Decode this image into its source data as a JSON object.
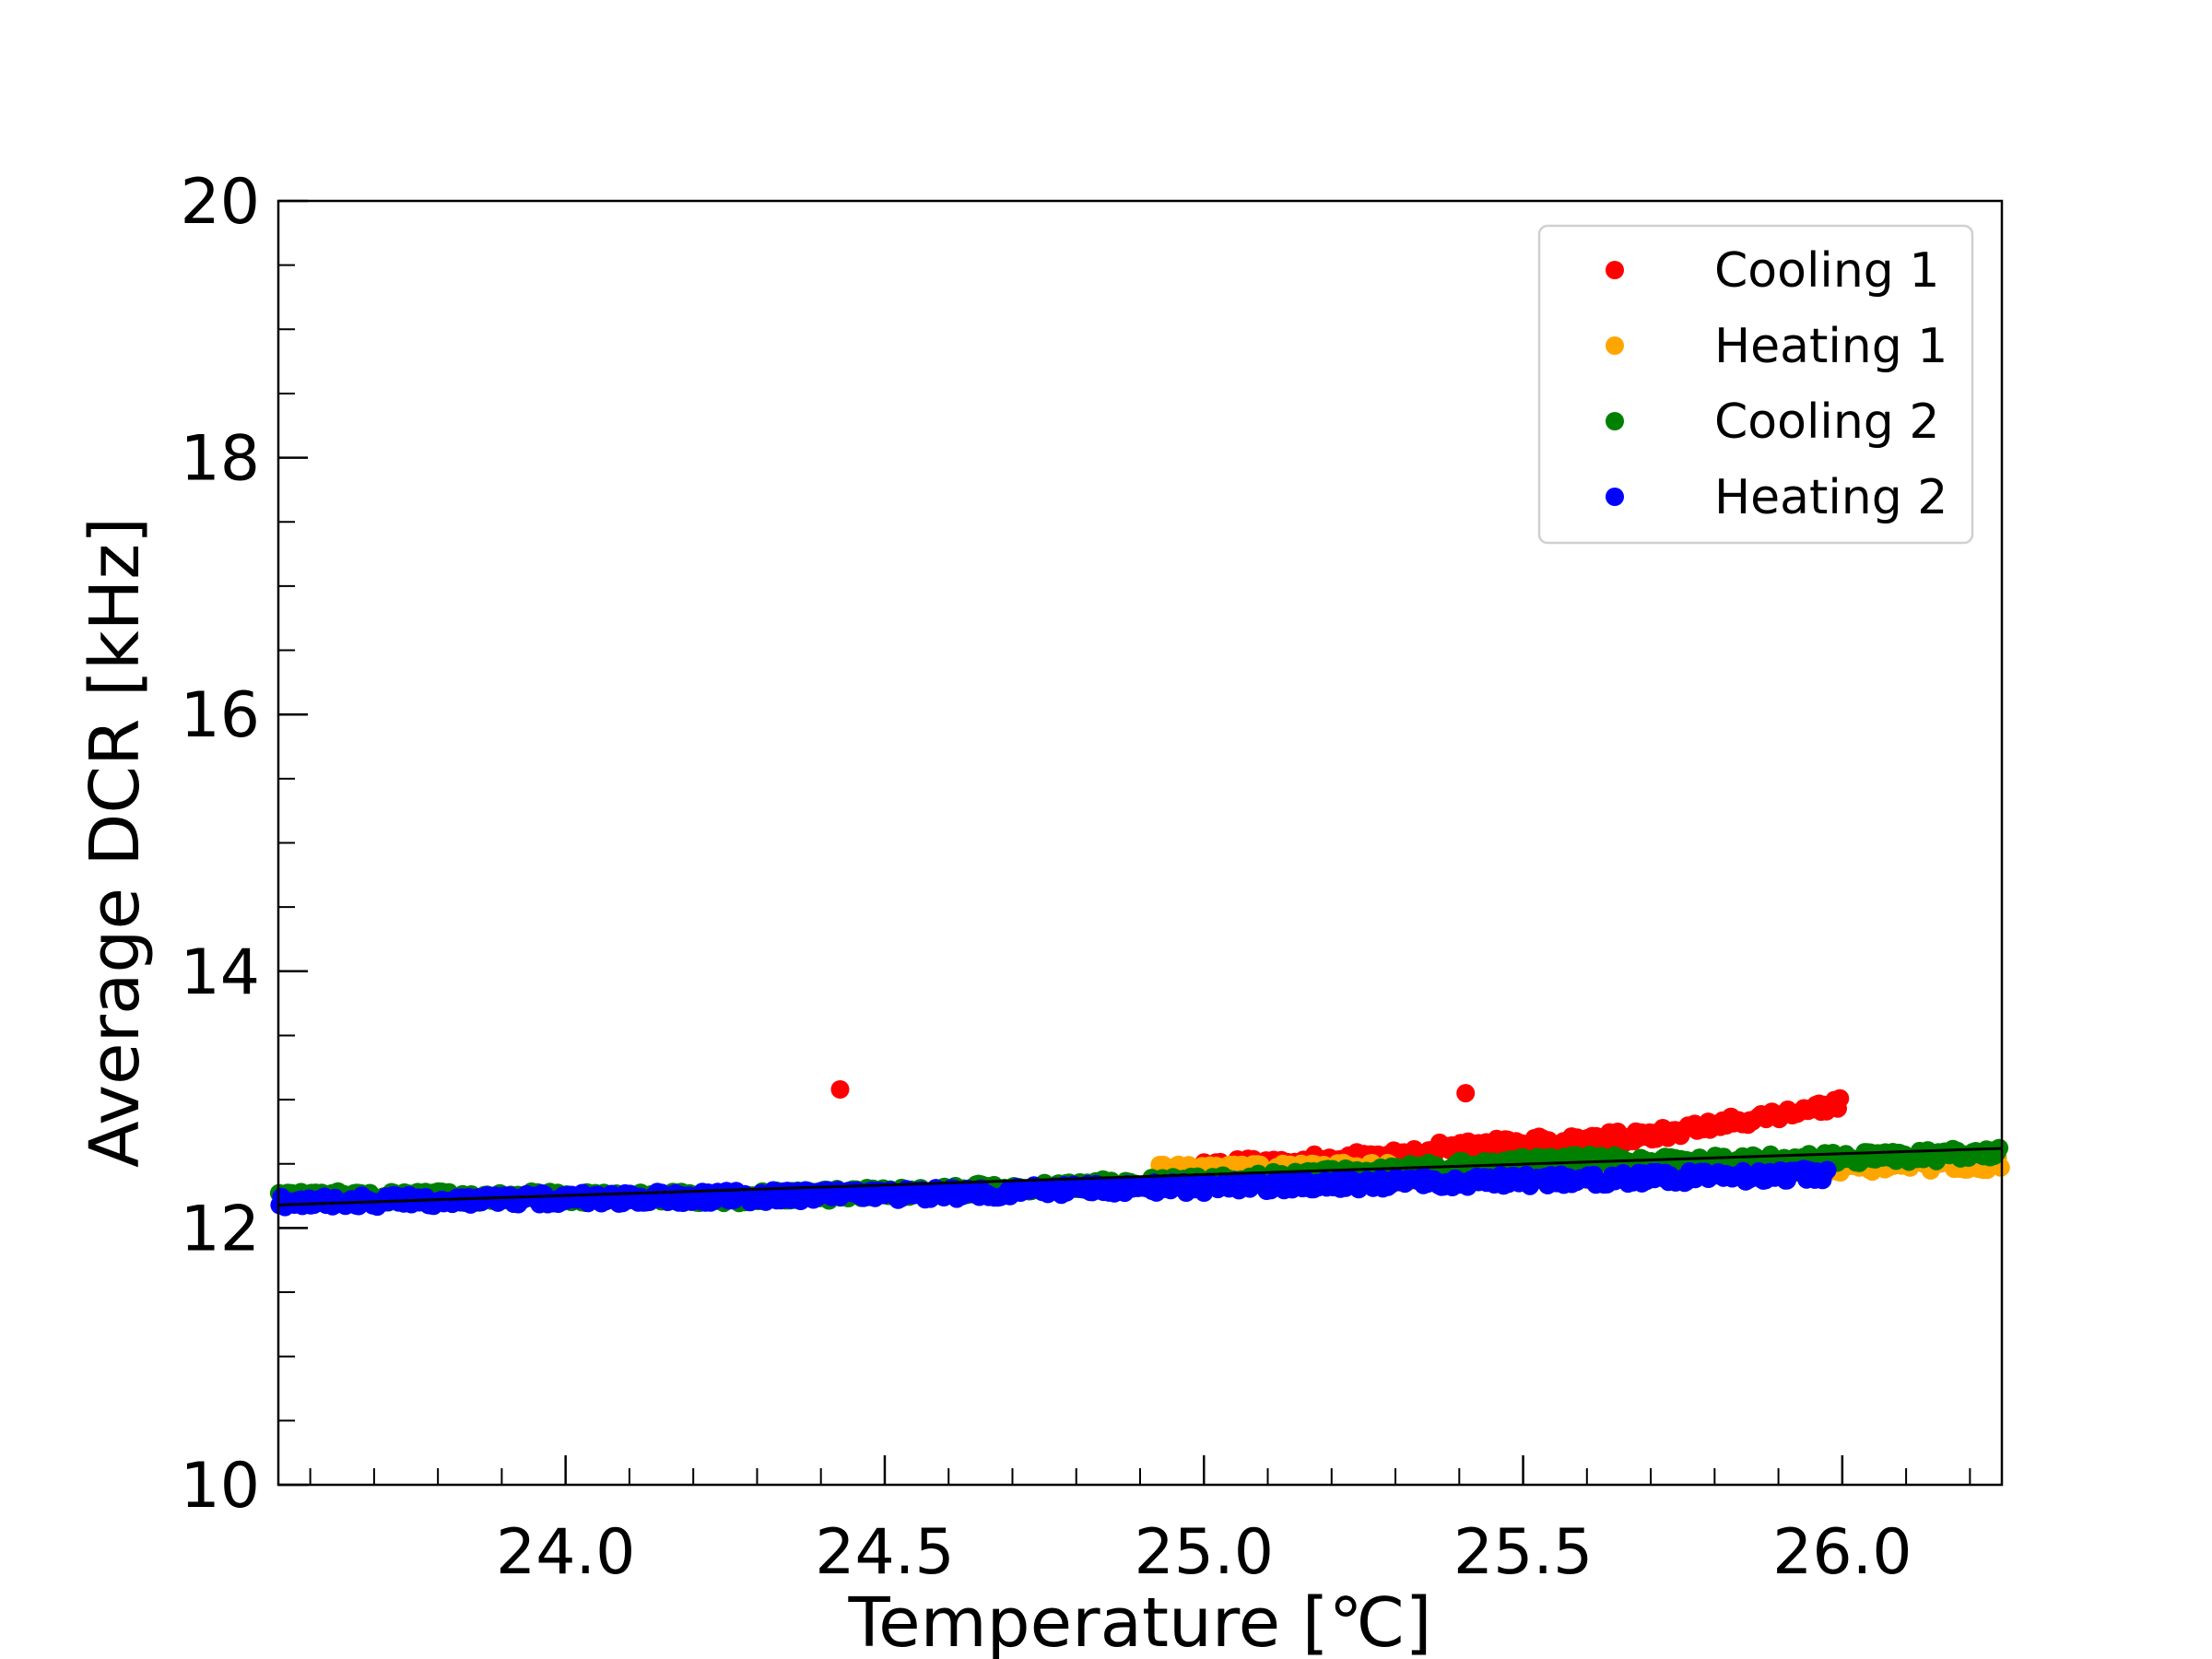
{
  "chart_data": {
    "type": "scatter",
    "title": "",
    "xlabel": "Temperature [℃]",
    "ylabel": "Average DCR [kHz]",
    "xlim": [
      23.55,
      26.25
    ],
    "ylim": [
      10,
      20
    ],
    "x_ticks": [
      24.0,
      24.5,
      25.0,
      25.5,
      26.0
    ],
    "x_tick_labels": [
      "24.0",
      "24.5",
      "25.0",
      "25.5",
      "26.0"
    ],
    "y_ticks": [
      10,
      12,
      14,
      16,
      18,
      20
    ],
    "y_tick_labels": [
      "10",
      "12",
      "14",
      "16",
      "18",
      "20"
    ],
    "grid": false,
    "legend_position": "top-right",
    "series": [
      {
        "name": "Cooling 1",
        "color": "#ff0000",
        "segments": [
          {
            "x": [
              25.0,
              25.25
            ],
            "y": [
              12.48,
              12.55
            ]
          },
          {
            "x": [
              25.25,
              25.35
            ],
            "y": [
              12.55,
              12.58
            ]
          },
          {
            "x": [
              25.35,
              25.7
            ],
            "y": [
              12.62,
              12.72
            ]
          },
          {
            "x": [
              25.7,
              26.0
            ],
            "y": [
              12.72,
              12.97
            ]
          }
        ],
        "outliers": [
          {
            "x": 24.43,
            "y": 13.08
          },
          {
            "x": 25.41,
            "y": 13.05
          }
        ]
      },
      {
        "name": "Heating 1",
        "color": "#ffa500",
        "segments": [
          {
            "x": [
              24.93,
              25.3
            ],
            "y": [
              12.45,
              12.47
            ]
          },
          {
            "x": [
              25.3,
              25.65
            ],
            "y": [
              12.4,
              12.42
            ]
          },
          {
            "x": [
              25.65,
              26.25
            ],
            "y": [
              12.45,
              12.5
            ]
          }
        ],
        "outliers": []
      },
      {
        "name": "Cooling 2",
        "color": "#008000",
        "segments": [
          {
            "x": [
              23.55,
              24.3
            ],
            "y": [
              12.24,
              12.24
            ]
          },
          {
            "x": [
              24.3,
              25.0
            ],
            "y": [
              12.24,
              12.36
            ]
          },
          {
            "x": [
              25.0,
              25.65
            ],
            "y": [
              12.36,
              12.55
            ]
          },
          {
            "x": [
              25.65,
              26.25
            ],
            "y": [
              12.5,
              12.58
            ]
          }
        ],
        "outliers": []
      },
      {
        "name": "Heating 2",
        "color": "#0000ff",
        "segments": [
          {
            "x": [
              23.55,
              24.5
            ],
            "y": [
              12.2,
              12.26
            ]
          },
          {
            "x": [
              24.5,
              25.0
            ],
            "y": [
              12.26,
              12.32
            ]
          },
          {
            "x": [
              25.0,
              25.98
            ],
            "y": [
              12.32,
              12.42
            ]
          }
        ],
        "outliers": []
      }
    ],
    "fit_line": {
      "color": "#000000",
      "x": [
        23.55,
        26.25
      ],
      "y": [
        12.18,
        12.62
      ]
    }
  }
}
